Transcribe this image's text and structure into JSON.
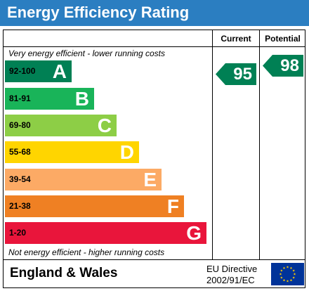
{
  "title": "Energy Efficiency Rating",
  "columns": {
    "current": "Current",
    "potential": "Potential"
  },
  "notes": {
    "top": "Very energy efficient - lower running costs",
    "bottom": "Not energy efficient - higher running costs"
  },
  "bands": [
    {
      "range": "92-100",
      "letter": "A",
      "color": "#008054",
      "range_color": "#000000"
    },
    {
      "range": "81-91",
      "letter": "B",
      "color": "#19b459",
      "range_color": "#000000"
    },
    {
      "range": "69-80",
      "letter": "C",
      "color": "#8dce46",
      "range_color": "#000000"
    },
    {
      "range": "55-68",
      "letter": "D",
      "color": "#ffd500",
      "range_color": "#000000"
    },
    {
      "range": "39-54",
      "letter": "E",
      "color": "#fcaa65",
      "range_color": "#000000"
    },
    {
      "range": "21-38",
      "letter": "F",
      "color": "#ef8023",
      "range_color": "#000000"
    },
    {
      "range": "1-20",
      "letter": "G",
      "color": "#e9153b",
      "range_color": "#000000"
    }
  ],
  "ratings": {
    "current": {
      "value": "95",
      "color": "#008054"
    },
    "potential": {
      "value": "98",
      "color": "#008054"
    }
  },
  "footer": {
    "country": "England & Wales",
    "directive_line1": "EU Directive",
    "directive_line2": "2002/91/EC"
  },
  "flag": {
    "background": "#003399",
    "stars": "#ffcc00",
    "icon": "eu-flag-icon"
  }
}
